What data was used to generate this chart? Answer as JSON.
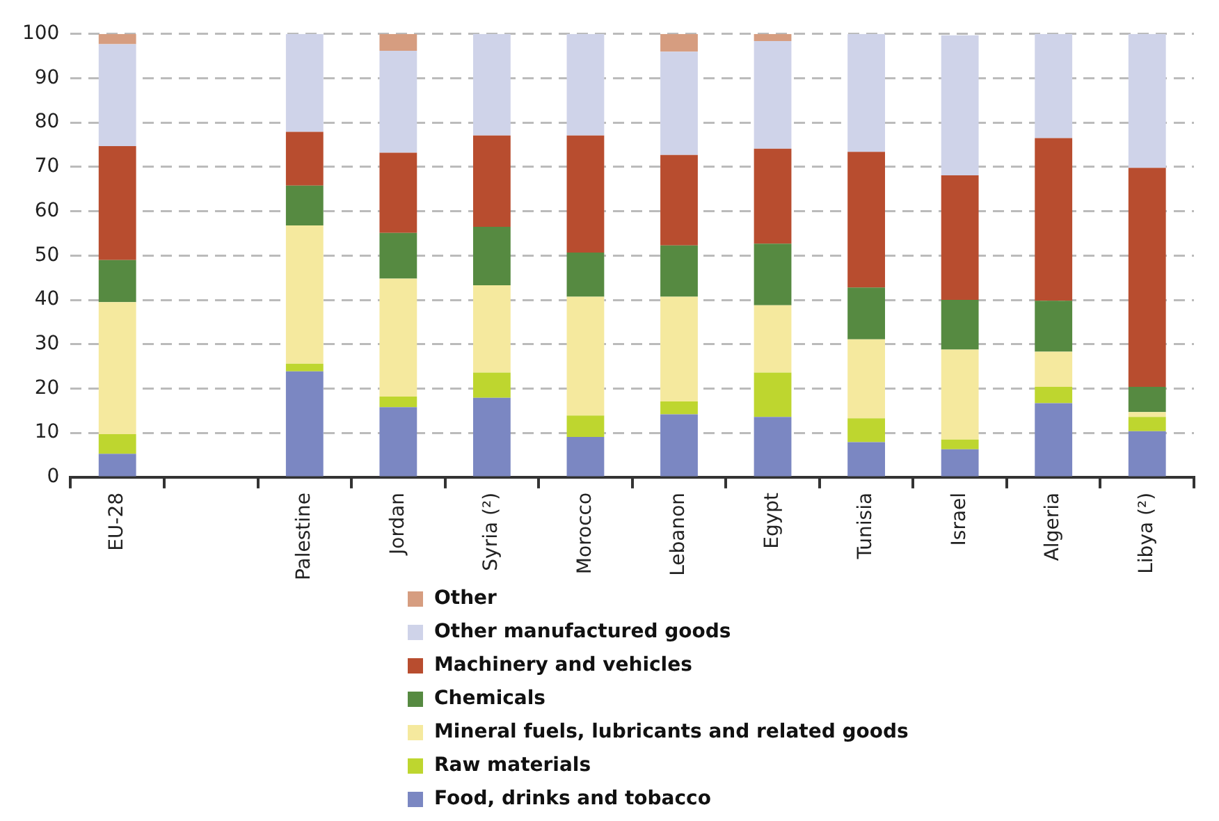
{
  "chart_data": {
    "type": "bar",
    "stacked": true,
    "categories": [
      "EU-28",
      null,
      "Palestine",
      "Jordan",
      "Syria (²)",
      "Morocco",
      "Lebanon",
      "Egypt",
      "Tunisia",
      "Israel",
      "Algeria",
      "Libya (²)"
    ],
    "series": [
      {
        "name": "Food, drinks and tobacco",
        "color": "#7b87c2",
        "values": [
          5.3,
          null,
          23.9,
          15.8,
          17.9,
          9.1,
          14.2,
          13.6,
          7.9,
          6.3,
          16.7,
          10.4
        ]
      },
      {
        "name": "Raw materials",
        "color": "#bed62f",
        "values": [
          4.4,
          null,
          1.7,
          2.4,
          5.7,
          4.8,
          2.9,
          10,
          5.4,
          2.2,
          3.7,
          3.2
        ]
      },
      {
        "name": "Mineral fuels, lubricants and related goods",
        "color": "#f5e99e",
        "values": [
          29.8,
          null,
          31.2,
          26.6,
          19.7,
          26.8,
          23.6,
          15.2,
          17.8,
          20.3,
          7.9,
          1.1
        ]
      },
      {
        "name": "Chemicals",
        "color": "#568a41",
        "values": [
          9.5,
          null,
          9,
          10.3,
          13.2,
          10,
          11.6,
          13.9,
          11.7,
          11.2,
          11.5,
          5.7
        ]
      },
      {
        "name": "Machinery and vehicles",
        "color": "#b84d2f",
        "values": [
          25.7,
          null,
          12.1,
          18.1,
          20.6,
          26.4,
          20.4,
          21.4,
          30.6,
          28.1,
          36.7,
          49.4
        ]
      },
      {
        "name": "Other manufactured goods",
        "color": "#cfd3e9",
        "values": [
          23,
          null,
          22.1,
          23,
          22.9,
          22.9,
          23.3,
          24.3,
          26.6,
          31.6,
          23.5,
          30.2
        ]
      },
      {
        "name": "Other",
        "color": "#d69d80",
        "values": [
          2.3,
          null,
          0,
          3.8,
          0,
          0,
          4,
          1.6,
          0,
          null,
          0,
          0
        ]
      }
    ],
    "ylim": [
      0,
      100
    ],
    "yticks": [
      0,
      10,
      20,
      30,
      40,
      50,
      60,
      70,
      80,
      90,
      100
    ],
    "grid": "y",
    "legend": "bottom"
  }
}
